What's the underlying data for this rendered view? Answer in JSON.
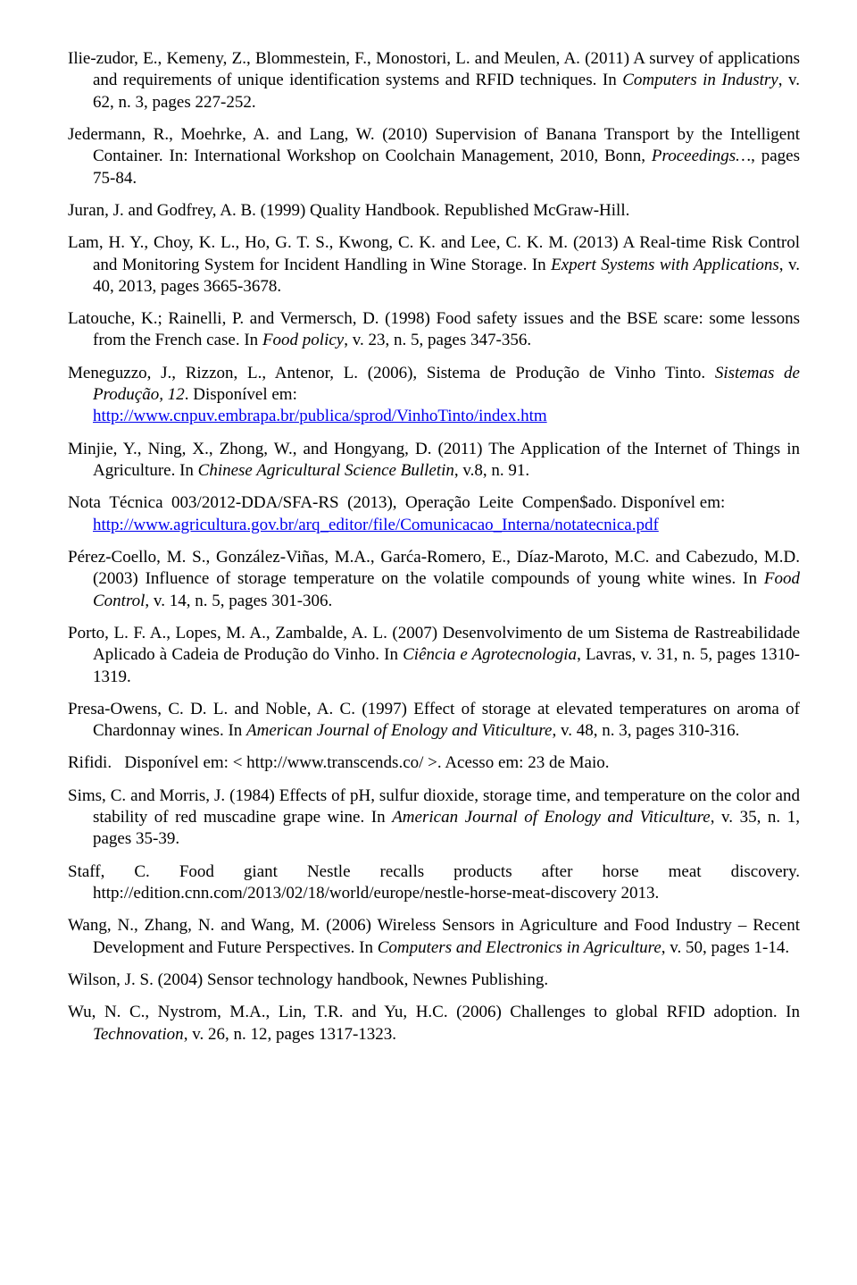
{
  "references": [
    {
      "html": "Ilie-zudor, E., Kemeny, Z., Blommestein, F., Monostori, L. and Meulen, A. (2011) A survey of applications and requirements of unique identification systems and RFID techniques. In <span class='ital'>Computers in Industry</span>, v. 62, n. 3, pages 227-252."
    },
    {
      "html": "Jedermann, R., Moehrke, A. and Lang, W. (2010) Supervision of Banana Transport by the Intelligent Container. In: International Workshop on Coolchain Management, 2010, Bonn, <span class='ital'>Proceedings…</span>, pages 75-84."
    },
    {
      "html": "Juran, J. and Godfrey, A. B. (1999) Quality Handbook. Republished McGraw-Hill."
    },
    {
      "html": "Lam, H. Y., Choy, K. L., Ho, G. T. S., Kwong, C. K. and Lee, C. K. M. (2013) A Real-time Risk Control and Monitoring System for Incident Handling in Wine Storage. In <span class='ital'>Expert Systems with Applications</span>, v. 40, 2013, pages 3665-3678."
    },
    {
      "html": "Latouche, K.; Rainelli, P. and Vermersch, D. (1998) Food safety issues and the BSE scare: some lessons from the French case. In <span class='ital'>Food policy</span>, v. 23, n. 5, pages 347-356."
    },
    {
      "html": "Meneguzzo, J., Rizzon, L., Antenor, L. (2006), Sistema de Produção de Vinho Tinto. <span class='ital'>Sistemas de Produção, 12</span>. Disponível em:<br><a href='#' data-name='link-cnpuv' data-interactable='true'>http://www.cnpuv.embrapa.br/publica/sprod/VinhoTinto/index.htm</a>"
    },
    {
      "html": "Minjie, Y., Ning, X., Zhong, W., and Hongyang, D. (2011) The Application of the Internet of Things in Agriculture. In <span class='ital'>Chinese Agricultural Science Bulletin</span>, v.8, n. 91."
    },
    {
      "html": "Nota&nbsp;&nbsp;Técnica&nbsp;&nbsp;003/2012-DDA/SFA-RS&nbsp;&nbsp;(2013),&nbsp;&nbsp;Operação&nbsp;&nbsp;Leite&nbsp;&nbsp;Compen$ado. Disponível em:<br><a href='#' data-name='link-agricultura' data-interactable='true'>http://www.agricultura.gov.br/arq_editor/file/Comunicacao_Interna/notatecnica.pdf</a>"
    },
    {
      "html": "Pérez-Coello, M. S., González-Viñas, M.A., Garća-Romero, E., Díaz-Maroto, M.C. and Cabezudo, M.D. (2003) Influence of storage temperature on the volatile compounds of young white wines. In <span class='ital'>Food Control</span>, v. 14, n. 5, pages 301-306."
    },
    {
      "html": "Porto, L. F. A., Lopes, M. A., Zambalde, A. L. (2007) Desenvolvimento de um Sistema de Rastreabilidade Aplicado à Cadeia de Produção do Vinho. In <span class='ital'>Ciência e Agrotecnologia</span>, Lavras, v. 31, n. 5, pages 1310-1319."
    },
    {
      "html": "Presa-Owens, C. D. L. and Noble, A. C. (1997) Effect of storage at elevated temperatures on aroma of Chardonnay wines. In <span class='ital'>American Journal of Enology and Viticulture</span>, v. 48, n. 3, pages 310-316."
    },
    {
      "html": "Rifidi.&nbsp;&nbsp;&nbsp;Disponível em: &lt; http://www.transcends.co/ &gt;. Acesso em: 23 de Maio."
    },
    {
      "html": "Sims, C. and Morris, J. (1984) Effects of pH, sulfur dioxide, storage time, and temperature on the color and stability of red muscadine grape wine. In <span class='ital'>American Journal of Enology and Viticulture</span>, v. 35, n. 1, pages 35-39."
    },
    {
      "html": "Staff, C. Food giant Nestle recalls products after horse meat discovery. http://edition.cnn.com/2013/02/18/world/europe/nestle-horse-meat-discovery 2013."
    },
    {
      "html": "Wang, N., Zhang, N. and Wang, M. (2006) Wireless Sensors in Agriculture and Food Industry – Recent Development and Future Perspectives. In <span class='ital'>Computers and Electronics in Agriculture</span>, v. 50, pages 1-14."
    },
    {
      "html": "Wilson, J. S. (2004) Sensor technology handbook, Newnes Publishing."
    },
    {
      "html": "Wu, N. C., Nystrom, M.A., Lin, T.R. and Yu, H.C. (2006) Challenges to global RFID adoption. In <span class='ital'>Technovation</span>, v. 26, n. 12, pages 1317-1323."
    }
  ]
}
